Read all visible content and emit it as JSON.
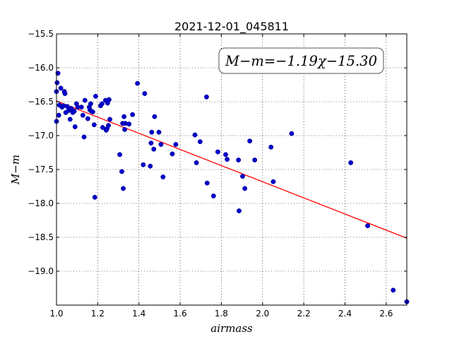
{
  "chart_data": {
    "type": "scatter",
    "title": "2021-12-01_045811",
    "xlabel": "airmass",
    "ylabel": "M−m",
    "xlim": [
      1.0,
      2.7
    ],
    "ylim": [
      -19.5,
      -15.5
    ],
    "y_inverted": true,
    "grid": true,
    "xticks": [
      1.0,
      1.2,
      1.4,
      1.6,
      1.8,
      2.0,
      2.2,
      2.4,
      2.6
    ],
    "xtick_labels": [
      "1.0",
      "1.2",
      "1.4",
      "1.6",
      "1.8",
      "2.0",
      "2.2",
      "2.4",
      "2.6"
    ],
    "yticks": [
      -15.5,
      -16.0,
      -16.5,
      -17.0,
      -17.5,
      -18.0,
      -18.5,
      -19.0
    ],
    "ytick_labels": [
      "−15.5",
      "−16.0",
      "−16.5",
      "−17.0",
      "−17.5",
      "−18.0",
      "−18.5",
      "−19.0"
    ],
    "fit_label": "M−m=−1.19χ−15.30",
    "fit": {
      "slope": -1.19,
      "intercept": -15.3,
      "color": "#ff0000"
    },
    "point_color": "#0000cc",
    "points": [
      {
        "x": 1.0,
        "y": -16.35
      },
      {
        "x": 1.0,
        "y": -16.79
      },
      {
        "x": 1.003,
        "y": -16.22
      },
      {
        "x": 1.007,
        "y": -16.08
      },
      {
        "x": 1.011,
        "y": -16.7
      },
      {
        "x": 1.014,
        "y": -16.55
      },
      {
        "x": 1.021,
        "y": -16.3
      },
      {
        "x": 1.027,
        "y": -16.58
      },
      {
        "x": 1.034,
        "y": -16.56
      },
      {
        "x": 1.038,
        "y": -16.35
      },
      {
        "x": 1.041,
        "y": -16.38
      },
      {
        "x": 1.045,
        "y": -16.66
      },
      {
        "x": 1.052,
        "y": -16.57
      },
      {
        "x": 1.059,
        "y": -16.63
      },
      {
        "x": 1.066,
        "y": -16.76
      },
      {
        "x": 1.072,
        "y": -16.6
      },
      {
        "x": 1.079,
        "y": -16.66
      },
      {
        "x": 1.086,
        "y": -16.64
      },
      {
        "x": 1.09,
        "y": -16.87
      },
      {
        "x": 1.097,
        "y": -16.53
      },
      {
        "x": 1.103,
        "y": -16.58
      },
      {
        "x": 1.121,
        "y": -16.58
      },
      {
        "x": 1.128,
        "y": -16.7
      },
      {
        "x": 1.134,
        "y": -17.02
      },
      {
        "x": 1.138,
        "y": -16.48
      },
      {
        "x": 1.152,
        "y": -16.75
      },
      {
        "x": 1.159,
        "y": -16.58
      },
      {
        "x": 1.162,
        "y": -16.62
      },
      {
        "x": 1.166,
        "y": -16.53
      },
      {
        "x": 1.169,
        "y": -16.64
      },
      {
        "x": 1.176,
        "y": -16.65
      },
      {
        "x": 1.183,
        "y": -16.84
      },
      {
        "x": 1.186,
        "y": -17.91
      },
      {
        "x": 1.19,
        "y": -16.42
      },
      {
        "x": 1.214,
        "y": -16.56
      },
      {
        "x": 1.221,
        "y": -16.53
      },
      {
        "x": 1.224,
        "y": -16.88
      },
      {
        "x": 1.238,
        "y": -16.48
      },
      {
        "x": 1.241,
        "y": -16.92
      },
      {
        "x": 1.245,
        "y": -16.9
      },
      {
        "x": 1.248,
        "y": -16.52
      },
      {
        "x": 1.252,
        "y": -16.85
      },
      {
        "x": 1.255,
        "y": -16.47
      },
      {
        "x": 1.259,
        "y": -16.76
      },
      {
        "x": 1.307,
        "y": -17.28
      },
      {
        "x": 1.317,
        "y": -17.53
      },
      {
        "x": 1.321,
        "y": -16.82
      },
      {
        "x": 1.324,
        "y": -17.78
      },
      {
        "x": 1.328,
        "y": -16.72
      },
      {
        "x": 1.331,
        "y": -16.91
      },
      {
        "x": 1.334,
        "y": -16.82
      },
      {
        "x": 1.352,
        "y": -16.83
      },
      {
        "x": 1.369,
        "y": -16.69
      },
      {
        "x": 1.393,
        "y": -16.23
      },
      {
        "x": 1.421,
        "y": -17.43
      },
      {
        "x": 1.428,
        "y": -16.38
      },
      {
        "x": 1.455,
        "y": -17.45
      },
      {
        "x": 1.459,
        "y": -17.11
      },
      {
        "x": 1.462,
        "y": -16.95
      },
      {
        "x": 1.472,
        "y": -17.2
      },
      {
        "x": 1.476,
        "y": -16.72
      },
      {
        "x": 1.497,
        "y": -16.95
      },
      {
        "x": 1.507,
        "y": -17.13
      },
      {
        "x": 1.517,
        "y": -17.61
      },
      {
        "x": 1.562,
        "y": -17.27
      },
      {
        "x": 1.579,
        "y": -17.13
      },
      {
        "x": 1.672,
        "y": -16.99
      },
      {
        "x": 1.679,
        "y": -17.4
      },
      {
        "x": 1.697,
        "y": -17.09
      },
      {
        "x": 1.728,
        "y": -16.43
      },
      {
        "x": 1.731,
        "y": -17.7
      },
      {
        "x": 1.762,
        "y": -17.89
      },
      {
        "x": 1.783,
        "y": -17.24
      },
      {
        "x": 1.821,
        "y": -17.28
      },
      {
        "x": 1.828,
        "y": -17.35
      },
      {
        "x": 1.883,
        "y": -17.36
      },
      {
        "x": 1.886,
        "y": -18.11
      },
      {
        "x": 1.903,
        "y": -17.6
      },
      {
        "x": 1.914,
        "y": -17.78
      },
      {
        "x": 1.938,
        "y": -17.08
      },
      {
        "x": 1.962,
        "y": -17.36
      },
      {
        "x": 2.041,
        "y": -17.17
      },
      {
        "x": 2.052,
        "y": -17.68
      },
      {
        "x": 2.141,
        "y": -16.97
      },
      {
        "x": 2.428,
        "y": -17.4
      },
      {
        "x": 2.51,
        "y": -18.33
      },
      {
        "x": 2.634,
        "y": -19.28
      },
      {
        "x": 2.7,
        "y": -19.45
      }
    ]
  }
}
